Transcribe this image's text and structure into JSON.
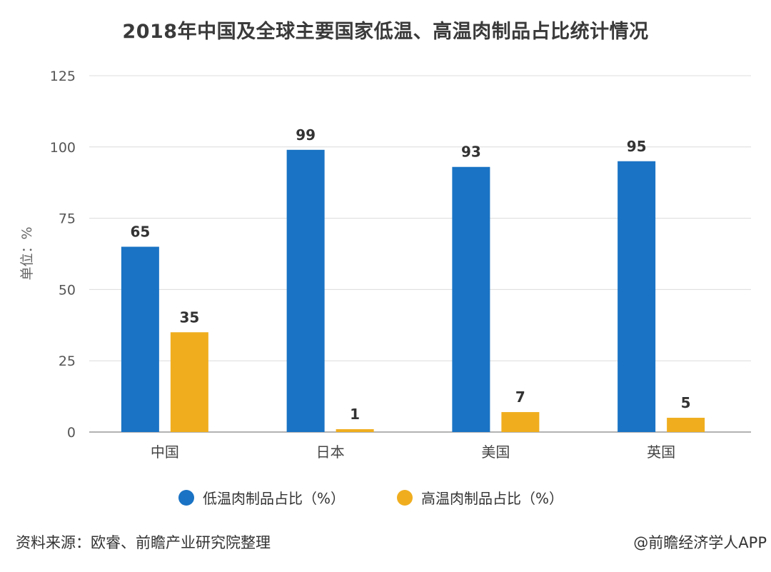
{
  "title": "2018年中国及全球主要国家低温、高温肉制品占比统计情况",
  "footer": {
    "source": "资料来源：欧睿、前瞻产业研究院整理",
    "brand": "@前瞻经济学人APP"
  },
  "colors": {
    "low": "#1a73c4",
    "high": "#f0ae1f",
    "grid": "#dcdcdc",
    "axis": "#9a9a9a"
  },
  "chart_data": {
    "type": "bar",
    "categories": [
      "中国",
      "日本",
      "美国",
      "英国"
    ],
    "series": [
      {
        "name": "低温肉制品占比（%）",
        "values": [
          65,
          99,
          93,
          95
        ]
      },
      {
        "name": "高温肉制品占比（%）",
        "values": [
          35,
          1,
          7,
          5
        ]
      }
    ],
    "ylabel": "单位：%",
    "ylim": [
      0,
      125
    ],
    "yticks": [
      0,
      25,
      50,
      75,
      100,
      125
    ],
    "grid": true,
    "legend_position": "bottom"
  }
}
